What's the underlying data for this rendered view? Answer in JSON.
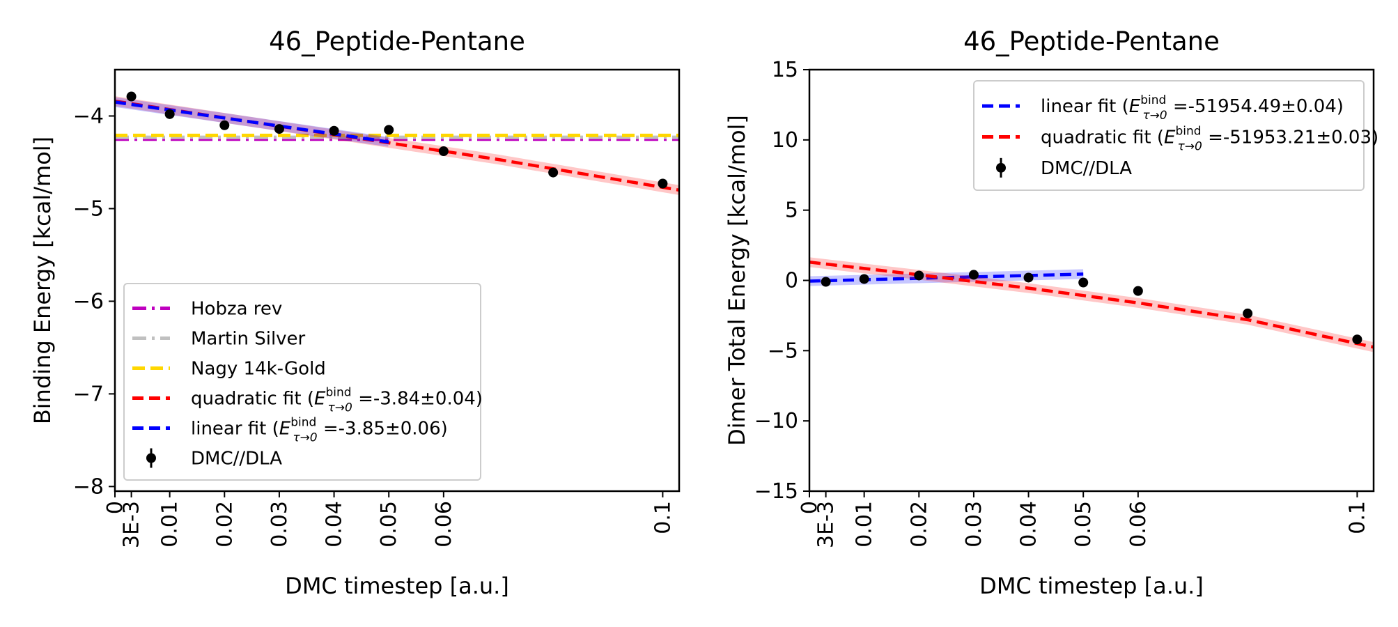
{
  "chart_data": [
    {
      "type": "line",
      "title": "46_Peptide-Pentane",
      "xlabel": "DMC timestep [a.u.]",
      "ylabel": "Binding Energy [kcal/mol]",
      "xlim": [
        0,
        0.103
      ],
      "ylim": [
        -8.05,
        -3.5
      ],
      "x_ticks": [
        {
          "value": 0,
          "label": "0"
        },
        {
          "value": 0.003,
          "label": "3E-3"
        },
        {
          "value": 0.01,
          "label": "0.01"
        },
        {
          "value": 0.02,
          "label": "0.02"
        },
        {
          "value": 0.03,
          "label": "0.03"
        },
        {
          "value": 0.04,
          "label": "0.04"
        },
        {
          "value": 0.05,
          "label": "0.05"
        },
        {
          "value": 0.06,
          "label": "0.06"
        },
        {
          "value": 0.1,
          "label": "0.1"
        }
      ],
      "y_ticks": [
        {
          "value": -4,
          "label": "−4"
        },
        {
          "value": -5,
          "label": "−5"
        },
        {
          "value": -6,
          "label": "−6"
        },
        {
          "value": -7,
          "label": "−7"
        },
        {
          "value": -8,
          "label": "−8"
        }
      ],
      "legend_position": "lower-left",
      "reference_lines": [
        {
          "name": "Hobza rev",
          "y": -4.25,
          "color": "#bf00bf",
          "style": "dashdot"
        },
        {
          "name": "Martin Silver",
          "y": -4.23,
          "color": "#c0c0c0",
          "style": "dashdot"
        },
        {
          "name": "Nagy 14k-Gold",
          "y": -4.21,
          "color": "#ffd700",
          "style": "dashed"
        }
      ],
      "fits": [
        {
          "name": "quadratic fit (E^bind_τ→0 =-3.84±0.04)",
          "legend_main": "quadratic fit (",
          "legend_var": "E",
          "legend_sup": "bind",
          "legend_sub": "τ→0",
          "legend_tail": " =-3.84±0.04)",
          "color": "#ff0000",
          "x": [
            0,
            0.01,
            0.02,
            0.03,
            0.04,
            0.05,
            0.06,
            0.07,
            0.08,
            0.09,
            0.103
          ],
          "y": [
            -3.84,
            -3.93,
            -4.02,
            -4.11,
            -4.2,
            -4.29,
            -4.38,
            -4.47,
            -4.57,
            -4.67,
            -4.8
          ]
        },
        {
          "name": "linear fit (E^bind_τ→0 =-3.85±0.06)",
          "legend_main": "linear fit (",
          "legend_var": "E",
          "legend_sup": "bind",
          "legend_sub": "τ→0",
          "legend_tail": " =-3.85±0.06)",
          "color": "#0000ff",
          "x": [
            0,
            0.05
          ],
          "y": [
            -3.85,
            -4.28
          ]
        }
      ],
      "series": [
        {
          "name": "DMC//DLA",
          "color": "#000000",
          "x": [
            0.003,
            0.01,
            0.02,
            0.03,
            0.04,
            0.05,
            0.06,
            0.08,
            0.1
          ],
          "y": [
            -3.79,
            -3.98,
            -4.1,
            -4.14,
            -4.16,
            -4.15,
            -4.38,
            -4.61,
            -4.73
          ],
          "err": [
            0.04,
            0.04,
            0.04,
            0.03,
            0.03,
            0.03,
            0.03,
            0.03,
            0.03
          ]
        }
      ]
    },
    {
      "type": "line",
      "title": "46_Peptide-Pentane",
      "xlabel": "DMC timestep [a.u.]",
      "ylabel": "Dimer Total Energy [kcal/mol]",
      "xlim": [
        0,
        0.103
      ],
      "ylim": [
        -15,
        15
      ],
      "x_ticks": [
        {
          "value": 0,
          "label": "0"
        },
        {
          "value": 0.003,
          "label": "3E-3"
        },
        {
          "value": 0.01,
          "label": "0.01"
        },
        {
          "value": 0.02,
          "label": "0.02"
        },
        {
          "value": 0.03,
          "label": "0.03"
        },
        {
          "value": 0.04,
          "label": "0.04"
        },
        {
          "value": 0.05,
          "label": "0.05"
        },
        {
          "value": 0.06,
          "label": "0.06"
        },
        {
          "value": 0.1,
          "label": "0.1"
        }
      ],
      "y_ticks": [
        {
          "value": 15,
          "label": "15"
        },
        {
          "value": 10,
          "label": "10"
        },
        {
          "value": 5,
          "label": "5"
        },
        {
          "value": 0,
          "label": "0"
        },
        {
          "value": -5,
          "label": "−5"
        },
        {
          "value": -10,
          "label": "−10"
        },
        {
          "value": -15,
          "label": "−15"
        }
      ],
      "legend_position": "upper-right",
      "reference_lines": [],
      "fits": [
        {
          "name": "linear fit (E^bind_τ→0 =-51954.49±0.04)",
          "legend_main": "linear fit (",
          "legend_var": "E",
          "legend_sup": "bind",
          "legend_sub": "τ→0",
          "legend_tail": " =-51954.49±0.04)",
          "color": "#0000ff",
          "x": [
            0,
            0.05
          ],
          "y": [
            -0.05,
            0.45
          ]
        },
        {
          "name": "quadratic fit (E^bind_τ→0 =-51953.21±0.03)",
          "legend_main": "quadratic fit (",
          "legend_var": "E",
          "legend_sup": "bind",
          "legend_sub": "τ→0",
          "legend_tail": " =-51953.21±0.03)",
          "color": "#ff0000",
          "x": [
            0,
            0.02,
            0.04,
            0.06,
            0.08,
            0.103
          ],
          "y": [
            1.3,
            0.4,
            -0.55,
            -1.6,
            -2.8,
            -4.75
          ]
        }
      ],
      "series": [
        {
          "name": "DMC//DLA",
          "color": "#000000",
          "x": [
            0.003,
            0.01,
            0.02,
            0.03,
            0.04,
            0.05,
            0.06,
            0.08,
            0.1
          ],
          "y": [
            -0.1,
            0.1,
            0.35,
            0.4,
            0.2,
            -0.15,
            -0.75,
            -2.35,
            -4.2
          ],
          "err": [
            0.15,
            0.15,
            0.15,
            0.15,
            0.15,
            0.15,
            0.15,
            0.15,
            0.15
          ]
        }
      ]
    }
  ]
}
